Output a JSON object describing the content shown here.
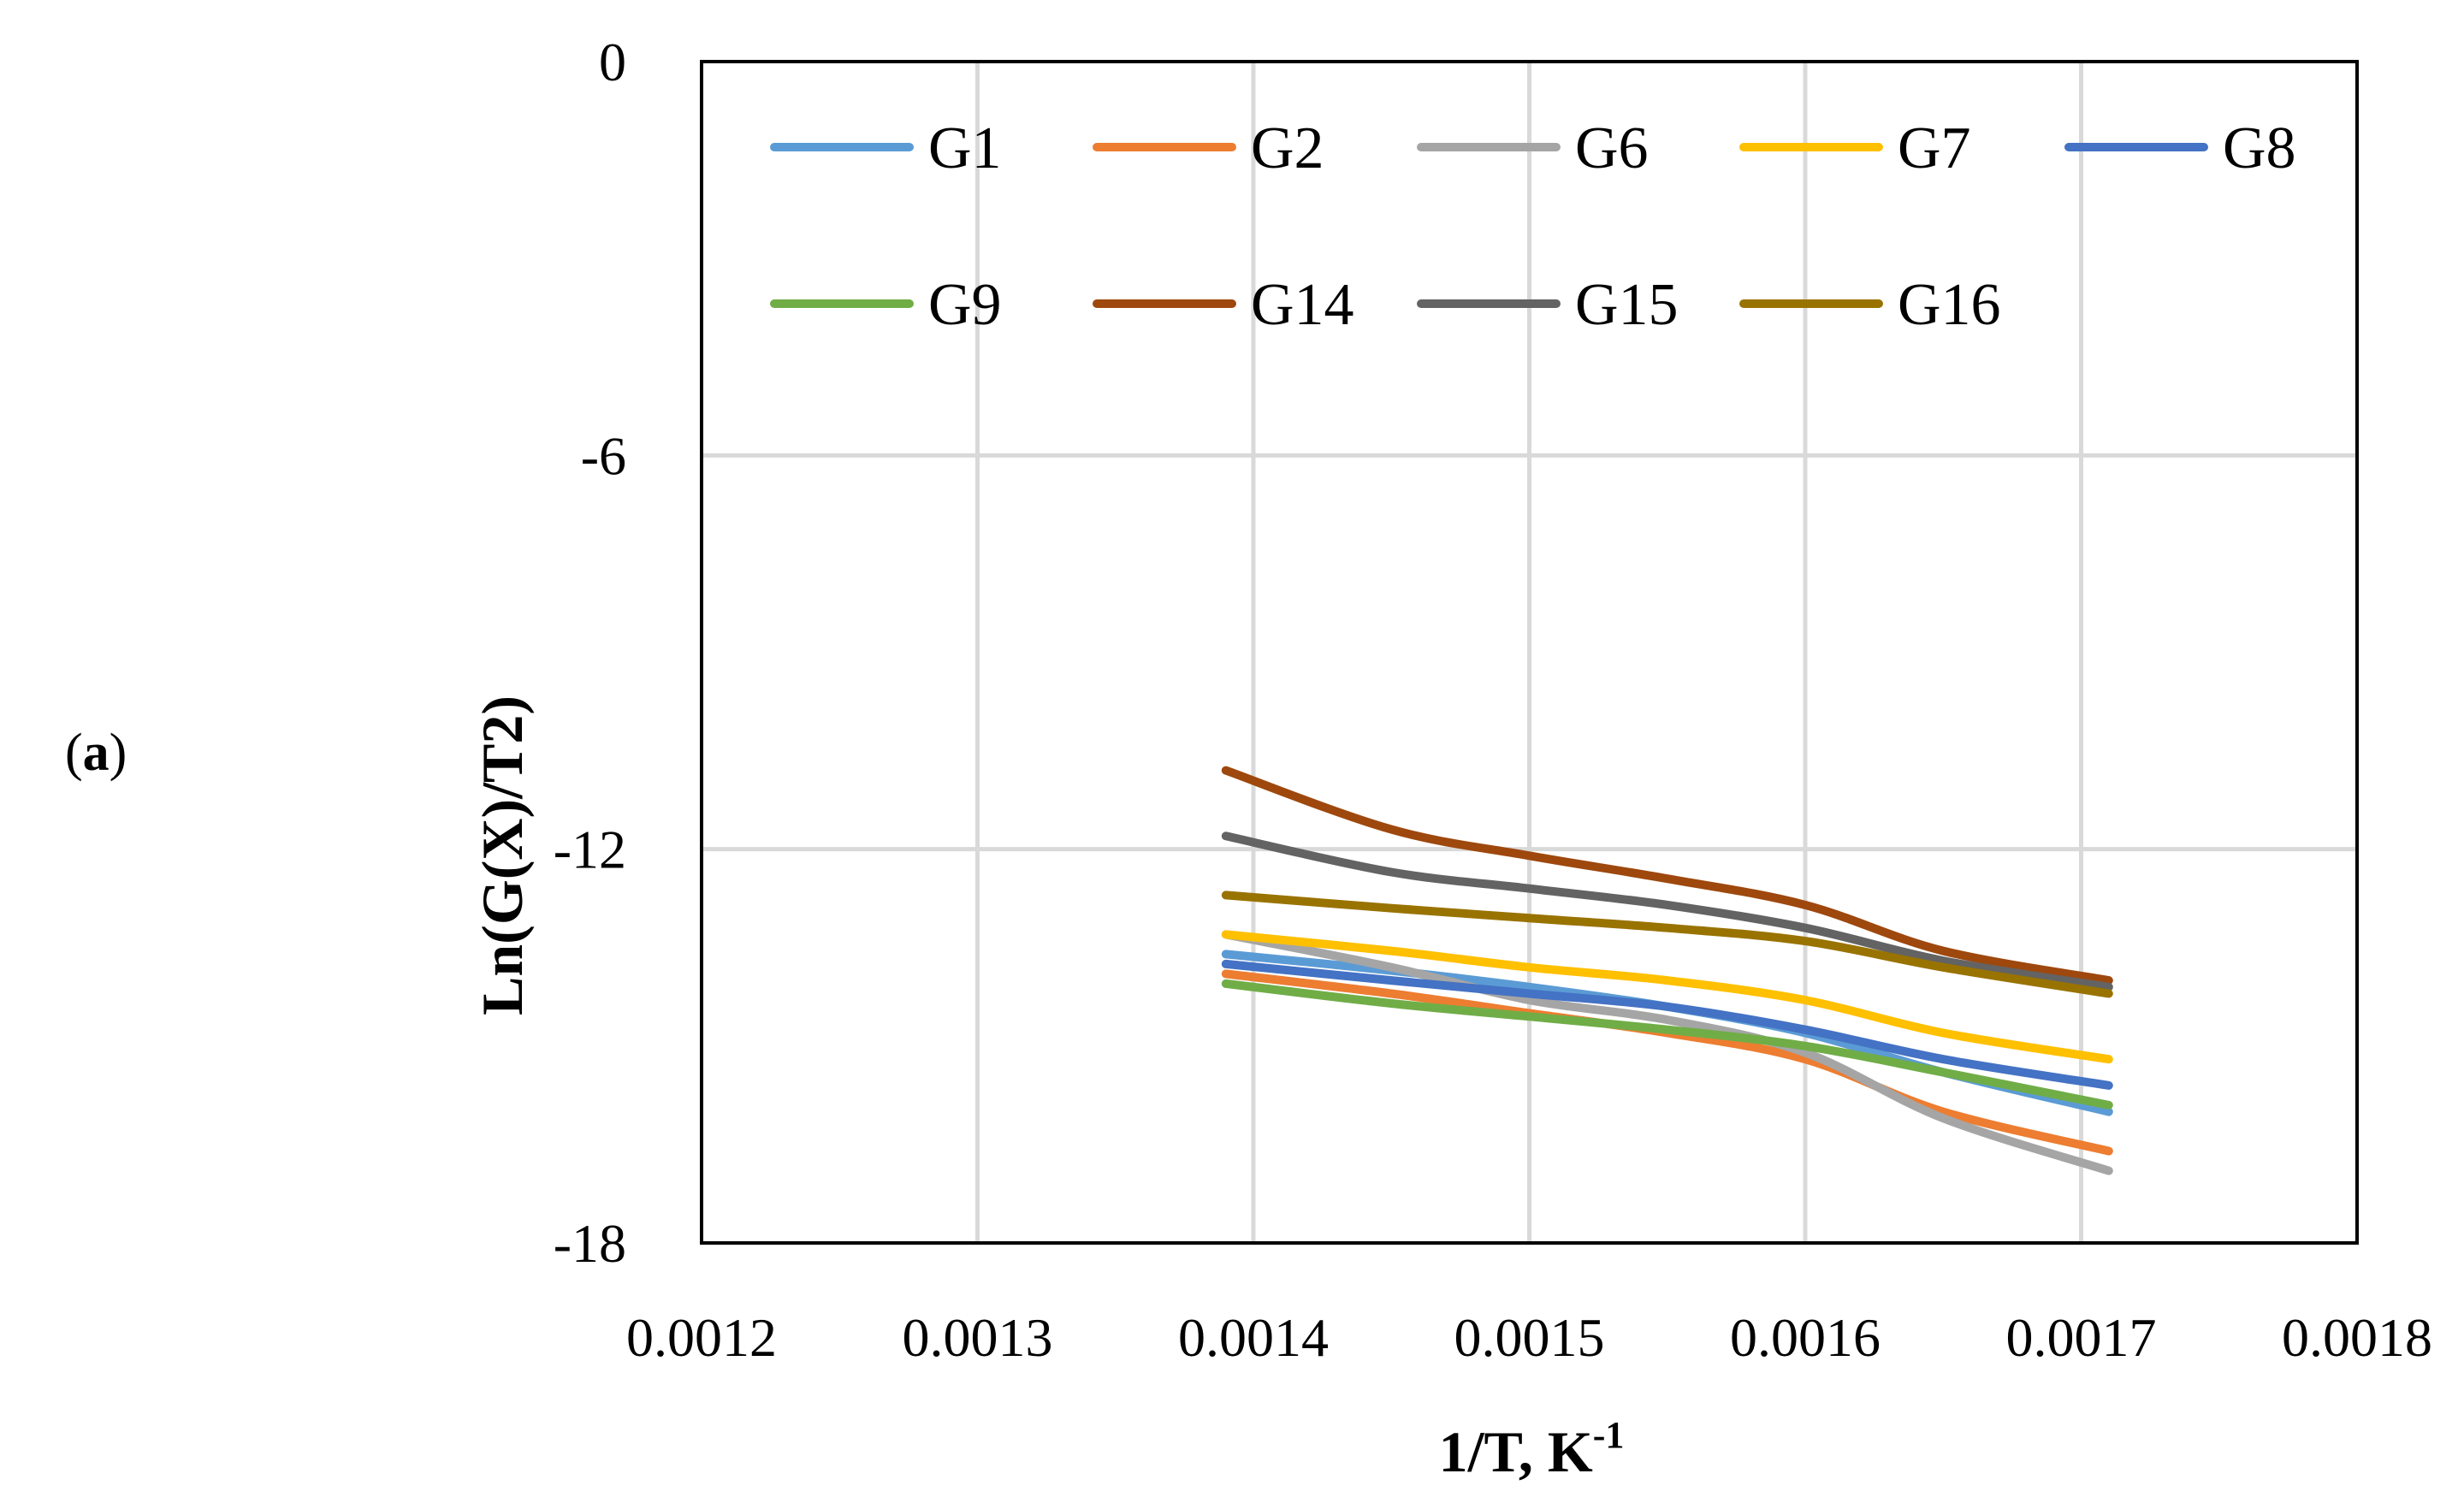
{
  "panel_label": {
    "open": "(",
    "letter": "a",
    "close": ")"
  },
  "chart_data": {
    "type": "line",
    "title": "",
    "xlabel": "1/T, K",
    "xlabel_superscript": "-1",
    "ylabel": "Ln(G(X)/T2)",
    "xlim": [
      0.0012,
      0.0018
    ],
    "ylim": [
      -18,
      0
    ],
    "xticks": [
      0.0012,
      0.0013,
      0.0014,
      0.0015,
      0.0016,
      0.0017,
      0.0018
    ],
    "xtick_labels": [
      "0.0012",
      "0.0013",
      "0.0014",
      "0.0015",
      "0.0016",
      "0.0017",
      "0.0018"
    ],
    "yticks": [
      0,
      -6,
      -12,
      -18
    ],
    "ytick_labels": [
      "0",
      "-6",
      "-12",
      "-18"
    ],
    "grid": true,
    "legend_position": "top, inside plot",
    "x": [
      0.00139,
      0.00145,
      0.0015,
      0.00155,
      0.0016,
      0.00165,
      0.00171
    ],
    "series": [
      {
        "name": "G1",
        "color": "#5b9bd5",
        "values": [
          -13.6,
          -13.85,
          -14.1,
          -14.4,
          -14.8,
          -15.4,
          -16.0
        ]
      },
      {
        "name": "G2",
        "color": "#ed7d31",
        "values": [
          -13.9,
          -14.2,
          -14.5,
          -14.8,
          -15.2,
          -16.0,
          -16.6
        ]
      },
      {
        "name": "G6",
        "color": "#a5a5a5",
        "values": [
          -13.3,
          -13.8,
          -14.3,
          -14.6,
          -15.1,
          -16.1,
          -16.9
        ]
      },
      {
        "name": "G7",
        "color": "#ffc000",
        "values": [
          -13.3,
          -13.55,
          -13.8,
          -14.0,
          -14.3,
          -14.8,
          -15.2
        ]
      },
      {
        "name": "G8",
        "color": "#4472c4",
        "values": [
          -13.75,
          -14.0,
          -14.2,
          -14.4,
          -14.75,
          -15.2,
          -15.6
        ]
      },
      {
        "name": "G9",
        "color": "#70ad47",
        "values": [
          -14.05,
          -14.35,
          -14.55,
          -14.75,
          -15.0,
          -15.4,
          -15.9
        ]
      },
      {
        "name": "G14",
        "color": "#9e480e",
        "values": [
          -10.8,
          -11.7,
          -12.1,
          -12.45,
          -12.85,
          -13.55,
          -14.0
        ]
      },
      {
        "name": "G15",
        "color": "#636363",
        "values": [
          -11.8,
          -12.35,
          -12.6,
          -12.85,
          -13.2,
          -13.7,
          -14.1
        ]
      },
      {
        "name": "G16",
        "color": "#997300",
        "values": [
          -12.7,
          -12.9,
          -13.05,
          -13.2,
          -13.4,
          -13.8,
          -14.2
        ]
      }
    ]
  }
}
